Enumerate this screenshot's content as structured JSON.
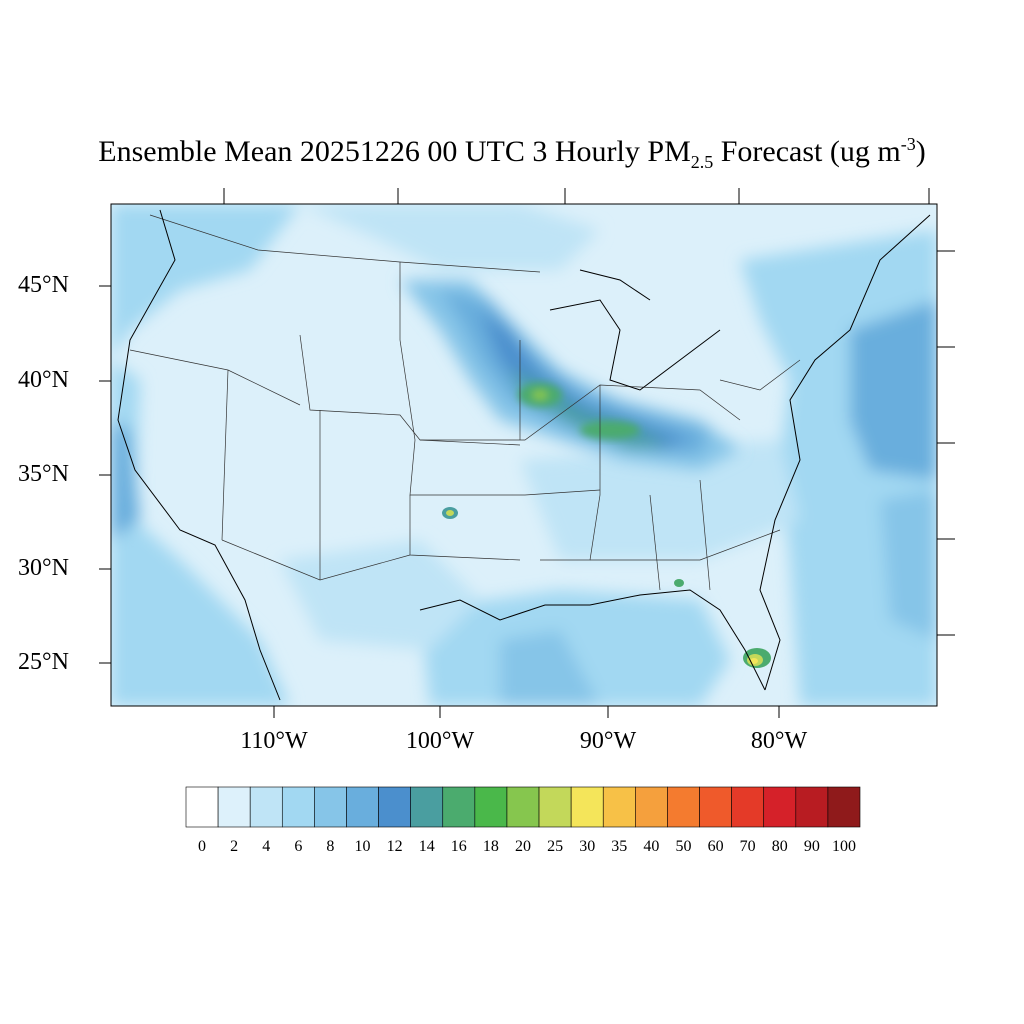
{
  "title": {
    "main": "Ensemble Mean 20251226 00 UTC 3 Hourly PM",
    "sub": "2.5",
    "rest": " Forecast (ug m",
    "sup": "-3",
    "close": ")"
  },
  "map": {
    "lat_labels": [
      "45°N",
      "40°N",
      "35°N",
      "30°N",
      "25°N"
    ],
    "lon_labels": [
      "110°W",
      "100°W",
      "90°W",
      "80°W"
    ],
    "background_color": "#dcf0fa",
    "hotspots": [
      {
        "name": "midwest-plume",
        "value": 18
      },
      {
        "name": "oklahoma-hotspot",
        "value": 25
      },
      {
        "name": "south-florida-hotspot",
        "value": 30
      },
      {
        "name": "florida-panhandle-hotspot",
        "value": 18
      }
    ]
  },
  "colorbar": {
    "labels": [
      "0",
      "2",
      "4",
      "6",
      "8",
      "10",
      "12",
      "14",
      "16",
      "18",
      "20",
      "25",
      "30",
      "35",
      "40",
      "50",
      "60",
      "70",
      "80",
      "90",
      "100"
    ],
    "colors": [
      "#ffffff",
      "#ddf1fb",
      "#bfe4f6",
      "#a2d8f2",
      "#86c5e8",
      "#69aedd",
      "#4b8fcd",
      "#4a9ea0",
      "#4bab6e",
      "#4ab84a",
      "#86c64e",
      "#c3d85a",
      "#f4e55a",
      "#f7c147",
      "#f5a03d",
      "#f47b2f",
      "#ef5a2b",
      "#e43a28",
      "#d52129",
      "#b81c22",
      "#8f1a1b"
    ]
  }
}
